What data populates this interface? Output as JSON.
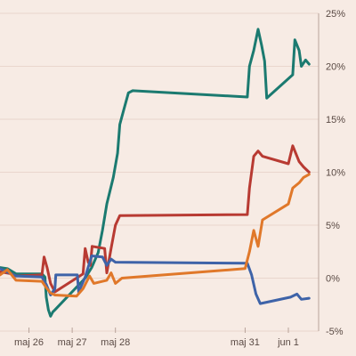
{
  "chart_data": {
    "type": "line",
    "title": "",
    "xlabel": "",
    "ylabel": "",
    "ylim": [
      -5,
      25
    ],
    "y_ticks": [
      {
        "value": 25,
        "label": "25%"
      },
      {
        "value": 20,
        "label": "20%"
      },
      {
        "value": 15,
        "label": "15%"
      },
      {
        "value": 10,
        "label": "10%"
      },
      {
        "value": 5,
        "label": "5%"
      },
      {
        "value": 0,
        "label": "0%"
      },
      {
        "value": -5,
        "label": "-5%"
      }
    ],
    "x_ticks": [
      {
        "value": 0.3,
        "label": "maj 26"
      },
      {
        "value": 1.3,
        "label": "maj 27"
      },
      {
        "value": 2.3,
        "label": "maj 28"
      },
      {
        "value": 5.3,
        "label": "maj 31"
      },
      {
        "value": 6.3,
        "label": "jun 1"
      }
    ],
    "xlim": [
      -0.37,
      7.0
    ],
    "grid": true,
    "colors": {
      "background": "#f7ebe4",
      "grid": "#e9d6cd",
      "axis": "#b8a39a",
      "tick_text": "#5a4a44"
    },
    "series": [
      {
        "color": "#1b7a70",
        "points": [
          [
            -0.37,
            1.0
          ],
          [
            -0.2,
            0.9
          ],
          [
            0.0,
            0.4
          ],
          [
            0.6,
            0.4
          ],
          [
            0.67,
            0.1
          ],
          [
            0.7,
            -1.8
          ],
          [
            0.75,
            -3.0
          ],
          [
            0.8,
            -3.6
          ],
          [
            0.85,
            -3.2
          ],
          [
            0.9,
            -3.0
          ],
          [
            1.6,
            0.0
          ],
          [
            1.75,
            1.0
          ],
          [
            1.9,
            2.4
          ],
          [
            2.0,
            4.5
          ],
          [
            2.1,
            7.0
          ],
          [
            2.25,
            9.5
          ],
          [
            2.35,
            11.8
          ],
          [
            2.4,
            14.5
          ],
          [
            2.5,
            16.0
          ],
          [
            2.6,
            17.5
          ],
          [
            2.7,
            17.7
          ],
          [
            5.35,
            17.1
          ],
          [
            5.4,
            20.0
          ],
          [
            5.5,
            21.5
          ],
          [
            5.6,
            23.5
          ],
          [
            5.68,
            22.0
          ],
          [
            5.75,
            20.5
          ],
          [
            5.8,
            17.0
          ],
          [
            6.4,
            19.2
          ],
          [
            6.45,
            22.5
          ],
          [
            6.55,
            21.5
          ],
          [
            6.6,
            20.0
          ],
          [
            6.7,
            20.6
          ],
          [
            6.78,
            20.2
          ]
        ]
      },
      {
        "color": "#b83a32",
        "points": [
          [
            -0.37,
            0.6
          ],
          [
            -0.1,
            0.4
          ],
          [
            0.0,
            0.2
          ],
          [
            0.6,
            0.3
          ],
          [
            0.65,
            2.0
          ],
          [
            0.72,
            1.0
          ],
          [
            0.8,
            -0.5
          ],
          [
            0.9,
            -1.3
          ],
          [
            1.55,
            0.4
          ],
          [
            1.6,
            2.8
          ],
          [
            1.67,
            1.5
          ],
          [
            1.72,
            1.2
          ],
          [
            1.76,
            3.0
          ],
          [
            2.05,
            2.8
          ],
          [
            2.1,
            0.5
          ],
          [
            2.2,
            2.8
          ],
          [
            2.3,
            5.0
          ],
          [
            2.4,
            5.9
          ],
          [
            5.35,
            6.0
          ],
          [
            5.4,
            8.5
          ],
          [
            5.5,
            11.5
          ],
          [
            5.6,
            12.0
          ],
          [
            5.7,
            11.5
          ],
          [
            6.3,
            10.8
          ],
          [
            6.4,
            12.5
          ],
          [
            6.55,
            11.0
          ],
          [
            6.65,
            10.5
          ],
          [
            6.78,
            10.0
          ]
        ]
      },
      {
        "color": "#3e63a8",
        "points": [
          [
            -0.37,
            0.9
          ],
          [
            0.0,
            0.2
          ],
          [
            0.6,
            0.1
          ],
          [
            0.7,
            -0.6
          ],
          [
            0.8,
            -1.6
          ],
          [
            0.9,
            -1.0
          ],
          [
            0.92,
            0.3
          ],
          [
            1.42,
            0.3
          ],
          [
            1.45,
            -1.3
          ],
          [
            1.6,
            0.1
          ],
          [
            1.75,
            2.1
          ],
          [
            2.0,
            2.0
          ],
          [
            2.1,
            1.2
          ],
          [
            2.2,
            1.8
          ],
          [
            2.3,
            1.5
          ],
          [
            5.35,
            1.4
          ],
          [
            5.45,
            0.3
          ],
          [
            5.55,
            -1.5
          ],
          [
            5.65,
            -2.4
          ],
          [
            6.35,
            -1.8
          ],
          [
            6.5,
            -1.5
          ],
          [
            6.6,
            -2.0
          ],
          [
            6.78,
            -1.9
          ]
        ]
      },
      {
        "color": "#e0782a",
        "points": [
          [
            -0.37,
            0.3
          ],
          [
            -0.2,
            0.8
          ],
          [
            0.0,
            -0.2
          ],
          [
            0.6,
            -0.3
          ],
          [
            0.7,
            -0.9
          ],
          [
            0.8,
            -1.4
          ],
          [
            0.9,
            -1.6
          ],
          [
            1.4,
            -1.7
          ],
          [
            1.55,
            -1.0
          ],
          [
            1.7,
            0.2
          ],
          [
            1.8,
            -0.5
          ],
          [
            2.1,
            -0.2
          ],
          [
            2.2,
            0.5
          ],
          [
            2.3,
            -0.5
          ],
          [
            2.45,
            0.0
          ],
          [
            5.3,
            0.9
          ],
          [
            5.4,
            2.5
          ],
          [
            5.5,
            4.5
          ],
          [
            5.6,
            3.0
          ],
          [
            5.7,
            5.5
          ],
          [
            6.3,
            7.0
          ],
          [
            6.4,
            8.5
          ],
          [
            6.55,
            9.0
          ],
          [
            6.65,
            9.5
          ],
          [
            6.78,
            9.8
          ]
        ]
      }
    ]
  }
}
